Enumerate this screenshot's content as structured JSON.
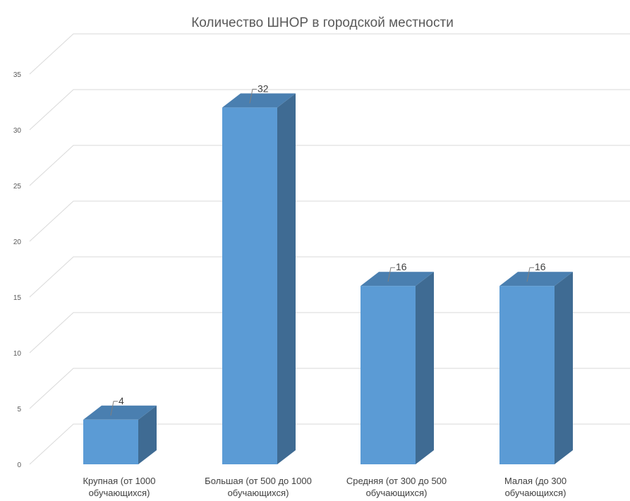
{
  "chart_data": {
    "type": "bar",
    "title": "Количество ШНОР в городской местности",
    "categories": [
      [
        "Крупная (от 1000",
        "обучающихся)"
      ],
      [
        "Большая (от 500 до 1000",
        "обучающихся)"
      ],
      [
        "Средняя (от 300 до 500",
        "обучающихся)"
      ],
      [
        "Малая (до 300",
        "обучающихся)"
      ]
    ],
    "values": [
      4,
      32,
      16,
      16
    ],
    "data_labels": [
      "4",
      "32",
      "16",
      "16"
    ],
    "ylim": [
      0,
      35
    ],
    "yticks": [
      0,
      5,
      10,
      15,
      20,
      25,
      30,
      35
    ],
    "grid": true,
    "style_3d": true,
    "colors": {
      "bar_front": "#5b9bd5",
      "bar_side": "#3f6b93",
      "bar_top": "#4a7fb0",
      "grid": "#d9d9d9",
      "text": "#595959"
    }
  }
}
